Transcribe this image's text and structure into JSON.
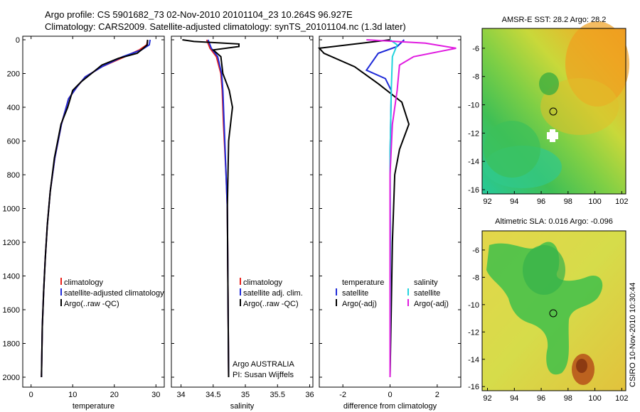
{
  "header": {
    "line1": "Argo profile: CS 5901682_73 02-Nov-2010 20101104_23 10.264S 96.927E",
    "line2": "Climatology: CARS2009. Satellite-adjusted climatology: synTS_20101104.nc (1.3d later)"
  },
  "credit": "CSIRO 10-Nov-2010 10:30:44",
  "colors": {
    "climatology": "#e8211b",
    "satellite": "#1f2bd8",
    "argo": "#000000",
    "sal_satellite": "#22d4dd",
    "sal_argo": "#e01be0"
  },
  "chart_data": [
    {
      "type": "line",
      "xlabel": "temperature",
      "xticks": [
        0,
        10,
        20,
        30
      ],
      "xlim": [
        -2,
        32
      ],
      "ylim": [
        2080,
        0
      ],
      "yticks": [
        0,
        200,
        400,
        600,
        800,
        1000,
        1200,
        1400,
        1600,
        1800,
        2000
      ],
      "series": [
        {
          "name": "climatology",
          "color_key": "climatology",
          "x": [
            28.0,
            27.8,
            26.0,
            22.5,
            17.0,
            13.0,
            11.0,
            9.0,
            7.3,
            5.7,
            4.6,
            3.9,
            3.4,
            3.0,
            2.7,
            2.5
          ],
          "y": [
            0,
            30,
            60,
            100,
            160,
            220,
            280,
            350,
            500,
            700,
            900,
            1100,
            1300,
            1500,
            1700,
            2000
          ]
        },
        {
          "name": "satellite-adjusted climatology",
          "color_key": "satellite",
          "x": [
            28.6,
            28.4,
            26.5,
            22.0,
            17.0,
            13.0,
            11.0,
            9.0,
            7.3,
            5.7,
            4.6,
            3.9,
            3.4,
            3.0,
            2.7,
            2.5
          ],
          "y": [
            0,
            30,
            60,
            100,
            160,
            220,
            280,
            350,
            500,
            700,
            900,
            1100,
            1300,
            1500,
            1700,
            2000
          ]
        },
        {
          "name": "Argo(..raw -QC)",
          "color_key": "argo",
          "x": [
            28.0,
            27.9,
            27.0,
            25.5,
            21.0,
            17.0,
            14.5,
            12.0,
            10.0,
            8.8,
            7.2,
            5.6,
            4.6,
            3.9,
            3.4,
            3.0,
            2.7,
            2.5
          ],
          "y": [
            0,
            30,
            50,
            80,
            110,
            150,
            200,
            250,
            300,
            400,
            500,
            700,
            900,
            1100,
            1300,
            1500,
            1700,
            2000
          ]
        }
      ],
      "legend": [
        "climatology",
        "satellite-adjusted climatology",
        "Argo(..raw -QC)"
      ]
    },
    {
      "type": "line",
      "xlabel": "salinity",
      "xticks": [
        34,
        34.5,
        35,
        35.5,
        36
      ],
      "xlim": [
        33.85,
        36.05
      ],
      "ylim": [
        2080,
        0
      ],
      "series": [
        {
          "name": "climatology",
          "color_key": "climatology",
          "x": [
            34.4,
            34.45,
            34.55,
            34.62,
            34.64,
            34.66,
            34.7,
            34.72,
            34.73,
            34.74
          ],
          "y": [
            0,
            50,
            100,
            200,
            300,
            500,
            800,
            1000,
            1500,
            2000
          ]
        },
        {
          "name": "satellite adj. clim.",
          "color_key": "satellite",
          "x": [
            34.42,
            34.47,
            34.57,
            34.63,
            34.65,
            34.67,
            34.7,
            34.72,
            34.73,
            34.74
          ],
          "y": [
            0,
            50,
            100,
            200,
            300,
            500,
            800,
            1000,
            1500,
            2000
          ]
        },
        {
          "name": "Argo(..raw -QC)",
          "color_key": "argo",
          "x": [
            34.02,
            34.2,
            34.9,
            34.9,
            34.5,
            34.62,
            34.65,
            34.75,
            34.8,
            34.74,
            34.72,
            34.73,
            34.74
          ],
          "y": [
            0,
            10,
            25,
            40,
            60,
            100,
            200,
            300,
            400,
            600,
            1000,
            1500,
            2000
          ]
        }
      ],
      "legend": [
        "climatology",
        "satellite adj. clim.",
        "Argo(..raw -QC)"
      ],
      "annotation": [
        "Argo AUSTRALIA",
        "PI: Susan Wijffels"
      ]
    },
    {
      "type": "line",
      "xlabel": "difference from climatology",
      "xticks": [
        -2,
        0,
        2
      ],
      "xlim": [
        -3.0,
        3.0
      ],
      "ylim": [
        2080,
        0
      ],
      "series": [
        {
          "name": "temperature satellite",
          "color_key": "satellite",
          "x": [
            0.6,
            0.3,
            -0.5,
            -1.0,
            -0.2,
            0.05,
            0.0,
            0.0,
            0.0
          ],
          "y": [
            0,
            40,
            80,
            180,
            230,
            300,
            700,
            1200,
            2000
          ]
        },
        {
          "name": "temperature Argo(-adj)",
          "color_key": "argo",
          "x": [
            0.0,
            -3.0,
            -2.8,
            -1.5,
            -0.5,
            0.5,
            0.8,
            0.4,
            0.2,
            0.1,
            0.05,
            0.0
          ],
          "y": [
            0,
            50,
            80,
            160,
            260,
            370,
            500,
            650,
            800,
            1200,
            1600,
            2000
          ]
        },
        {
          "name": "salinity satellite",
          "color_key": "sal_satellite",
          "x": [
            0.0,
            0.3,
            0.1,
            0.05,
            0.0,
            0.02,
            0.0
          ],
          "y": [
            0,
            30,
            100,
            300,
            700,
            1200,
            2000
          ]
        },
        {
          "name": "salinity Argo(-adj)",
          "color_key": "sal_argo",
          "x": [
            -1.0,
            1.5,
            2.8,
            1.0,
            0.4,
            0.3,
            0.1,
            0.0,
            0.0
          ],
          "y": [
            0,
            20,
            50,
            100,
            150,
            300,
            500,
            800,
            2000
          ]
        }
      ],
      "legend_headers": [
        "temperature",
        "salinity"
      ],
      "legend_left": [
        "satellite",
        "Argo(-adj)"
      ],
      "legend_right": [
        "satellite",
        "Argo(-adj)"
      ]
    },
    {
      "type": "heatmap",
      "title": "AMSR-E SST: 28.2 Argo: 28.2",
      "xticks": [
        92,
        94,
        96,
        98,
        100,
        102
      ],
      "yticks": [
        -6,
        -8,
        -10,
        -12,
        -14,
        -16
      ]
    },
    {
      "type": "heatmap",
      "title": "Altimetric SLA: 0.016 Argo: -0.096",
      "xticks": [
        92,
        94,
        96,
        98,
        100,
        102
      ],
      "yticks": [
        -6,
        -8,
        -10,
        -12,
        -14,
        -16
      ]
    }
  ]
}
